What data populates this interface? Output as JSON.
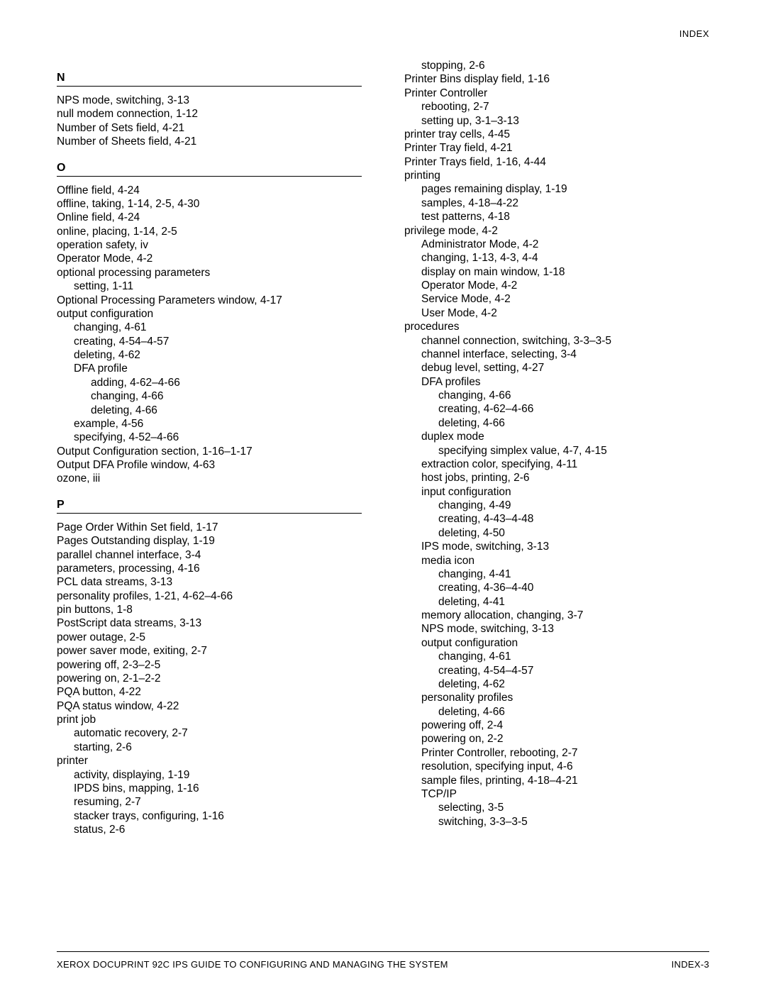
{
  "header": {
    "label": "INDEX"
  },
  "footer": {
    "left": "XEROX DOCUPRINT 92C IPS GUIDE TO CONFIGURING AND MANAGING THE SYSTEM",
    "right": "INDEX-3"
  },
  "left_column": [
    {
      "type": "letter",
      "text": "N"
    },
    {
      "type": "entry",
      "indent": 0,
      "text": "NPS mode, switching, 3-13"
    },
    {
      "type": "entry",
      "indent": 0,
      "text": "null modem connection, 1-12"
    },
    {
      "type": "entry",
      "indent": 0,
      "text": "Number of Sets field, 4-21"
    },
    {
      "type": "entry",
      "indent": 0,
      "text": "Number of Sheets field, 4-21"
    },
    {
      "type": "letter",
      "text": "O"
    },
    {
      "type": "entry",
      "indent": 0,
      "text": "Offline field, 4-24"
    },
    {
      "type": "entry",
      "indent": 0,
      "text": "offline, taking, 1-14, 2-5, 4-30"
    },
    {
      "type": "entry",
      "indent": 0,
      "text": "Online field, 4-24"
    },
    {
      "type": "entry",
      "indent": 0,
      "text": "online, placing, 1-14, 2-5"
    },
    {
      "type": "entry",
      "indent": 0,
      "text": "operation safety, iv"
    },
    {
      "type": "entry",
      "indent": 0,
      "text": "Operator Mode, 4-2"
    },
    {
      "type": "entry",
      "indent": 0,
      "text": "optional processing parameters"
    },
    {
      "type": "entry",
      "indent": 1,
      "text": "setting, 1-11"
    },
    {
      "type": "entry",
      "indent": 0,
      "text": "Optional Processing Parameters window, 4-17"
    },
    {
      "type": "entry",
      "indent": 0,
      "text": "output configuration"
    },
    {
      "type": "entry",
      "indent": 1,
      "text": "changing, 4-61"
    },
    {
      "type": "entry",
      "indent": 1,
      "text": "creating, 4-54–4-57"
    },
    {
      "type": "entry",
      "indent": 1,
      "text": "deleting, 4-62"
    },
    {
      "type": "entry",
      "indent": 1,
      "text": "DFA profile"
    },
    {
      "type": "entry",
      "indent": 2,
      "text": "adding, 4-62–4-66"
    },
    {
      "type": "entry",
      "indent": 2,
      "text": "changing, 4-66"
    },
    {
      "type": "entry",
      "indent": 2,
      "text": "deleting, 4-66"
    },
    {
      "type": "entry",
      "indent": 1,
      "text": "example, 4-56"
    },
    {
      "type": "entry",
      "indent": 1,
      "text": "specifying, 4-52–4-66"
    },
    {
      "type": "entry",
      "indent": 0,
      "text": "Output Configuration section, 1-16–1-17"
    },
    {
      "type": "entry",
      "indent": 0,
      "text": "Output DFA Profile window, 4-63"
    },
    {
      "type": "entry",
      "indent": 0,
      "text": "ozone, iii"
    },
    {
      "type": "letter",
      "text": "P"
    },
    {
      "type": "entry",
      "indent": 0,
      "text": "Page Order Within Set field, 1-17"
    },
    {
      "type": "entry",
      "indent": 0,
      "text": "Pages Outstanding display, 1-19"
    },
    {
      "type": "entry",
      "indent": 0,
      "text": "parallel channel interface, 3-4"
    },
    {
      "type": "entry",
      "indent": 0,
      "text": "parameters, processing, 4-16"
    },
    {
      "type": "entry",
      "indent": 0,
      "text": "PCL data streams, 3-13"
    },
    {
      "type": "entry",
      "indent": 0,
      "text": "personality profiles, 1-21, 4-62–4-66"
    },
    {
      "type": "entry",
      "indent": 0,
      "text": "pin buttons, 1-8"
    },
    {
      "type": "entry",
      "indent": 0,
      "text": "PostScript data streams, 3-13"
    },
    {
      "type": "entry",
      "indent": 0,
      "text": "power outage, 2-5"
    },
    {
      "type": "entry",
      "indent": 0,
      "text": "power saver mode, exiting, 2-7"
    },
    {
      "type": "entry",
      "indent": 0,
      "text": "powering off, 2-3–2-5"
    },
    {
      "type": "entry",
      "indent": 0,
      "text": "powering on, 2-1–2-2"
    },
    {
      "type": "entry",
      "indent": 0,
      "text": "PQA button, 4-22"
    },
    {
      "type": "entry",
      "indent": 0,
      "text": "PQA status window, 4-22"
    },
    {
      "type": "entry",
      "indent": 0,
      "text": "print job"
    },
    {
      "type": "entry",
      "indent": 1,
      "text": "automatic recovery, 2-7"
    },
    {
      "type": "entry",
      "indent": 1,
      "text": "starting, 2-6"
    },
    {
      "type": "entry",
      "indent": 0,
      "text": "printer"
    },
    {
      "type": "entry",
      "indent": 1,
      "text": "activity, displaying, 1-19"
    },
    {
      "type": "entry",
      "indent": 1,
      "text": "IPDS bins, mapping, 1-16"
    },
    {
      "type": "entry",
      "indent": 1,
      "text": "resuming, 2-7"
    },
    {
      "type": "entry",
      "indent": 1,
      "text": "stacker trays, configuring, 1-16"
    },
    {
      "type": "entry",
      "indent": 1,
      "text": "status, 2-6"
    }
  ],
  "right_column": [
    {
      "type": "entry",
      "indent": 1,
      "text": "stopping, 2-6"
    },
    {
      "type": "entry",
      "indent": 0,
      "text": "Printer Bins display field, 1-16"
    },
    {
      "type": "entry",
      "indent": 0,
      "text": "Printer Controller"
    },
    {
      "type": "entry",
      "indent": 1,
      "text": "rebooting, 2-7"
    },
    {
      "type": "entry",
      "indent": 1,
      "text": "setting up, 3-1–3-13"
    },
    {
      "type": "entry",
      "indent": 0,
      "text": "printer tray cells, 4-45"
    },
    {
      "type": "entry",
      "indent": 0,
      "text": "Printer Tray field, 4-21"
    },
    {
      "type": "entry",
      "indent": 0,
      "text": "Printer Trays field, 1-16, 4-44"
    },
    {
      "type": "entry",
      "indent": 0,
      "text": "printing"
    },
    {
      "type": "entry",
      "indent": 1,
      "text": "pages remaining display, 1-19"
    },
    {
      "type": "entry",
      "indent": 1,
      "text": "samples, 4-18–4-22"
    },
    {
      "type": "entry",
      "indent": 1,
      "text": "test patterns, 4-18"
    },
    {
      "type": "entry",
      "indent": 0,
      "text": "privilege mode, 4-2"
    },
    {
      "type": "entry",
      "indent": 1,
      "text": "Administrator Mode, 4-2"
    },
    {
      "type": "entry",
      "indent": 1,
      "text": "changing, 1-13, 4-3, 4-4"
    },
    {
      "type": "entry",
      "indent": 1,
      "text": "display on main window, 1-18"
    },
    {
      "type": "entry",
      "indent": 1,
      "text": "Operator Mode, 4-2"
    },
    {
      "type": "entry",
      "indent": 1,
      "text": "Service Mode, 4-2"
    },
    {
      "type": "entry",
      "indent": 1,
      "text": "User Mode, 4-2"
    },
    {
      "type": "entry",
      "indent": 0,
      "text": "procedures"
    },
    {
      "type": "entry",
      "indent": 1,
      "text": "channel connection, switching, 3-3–3-5"
    },
    {
      "type": "entry",
      "indent": 1,
      "text": "channel interface, selecting, 3-4"
    },
    {
      "type": "entry",
      "indent": 1,
      "text": "debug level, setting, 4-27"
    },
    {
      "type": "entry",
      "indent": 1,
      "text": "DFA profiles"
    },
    {
      "type": "entry",
      "indent": 2,
      "text": "changing, 4-66"
    },
    {
      "type": "entry",
      "indent": 2,
      "text": "creating, 4-62–4-66"
    },
    {
      "type": "entry",
      "indent": 2,
      "text": "deleting, 4-66"
    },
    {
      "type": "entry",
      "indent": 1,
      "text": "duplex mode"
    },
    {
      "type": "entry",
      "indent": 2,
      "text": "specifying simplex value, 4-7, 4-15"
    },
    {
      "type": "entry",
      "indent": 1,
      "text": "extraction color, specifying, 4-11"
    },
    {
      "type": "entry",
      "indent": 1,
      "text": "host jobs, printing, 2-6"
    },
    {
      "type": "entry",
      "indent": 1,
      "text": "input configuration"
    },
    {
      "type": "entry",
      "indent": 2,
      "text": "changing, 4-49"
    },
    {
      "type": "entry",
      "indent": 2,
      "text": "creating, 4-43–4-48"
    },
    {
      "type": "entry",
      "indent": 2,
      "text": "deleting, 4-50"
    },
    {
      "type": "entry",
      "indent": 1,
      "text": "IPS mode, switching, 3-13"
    },
    {
      "type": "entry",
      "indent": 1,
      "text": "media icon"
    },
    {
      "type": "entry",
      "indent": 2,
      "text": "changing, 4-41"
    },
    {
      "type": "entry",
      "indent": 2,
      "text": "creating, 4-36–4-40"
    },
    {
      "type": "entry",
      "indent": 2,
      "text": "deleting, 4-41"
    },
    {
      "type": "entry",
      "indent": 1,
      "text": "memory allocation, changing, 3-7"
    },
    {
      "type": "entry",
      "indent": 1,
      "text": "NPS mode, switching, 3-13"
    },
    {
      "type": "entry",
      "indent": 1,
      "text": "output configuration"
    },
    {
      "type": "entry",
      "indent": 2,
      "text": "changing, 4-61"
    },
    {
      "type": "entry",
      "indent": 2,
      "text": "creating, 4-54–4-57"
    },
    {
      "type": "entry",
      "indent": 2,
      "text": "deleting, 4-62"
    },
    {
      "type": "entry",
      "indent": 1,
      "text": "personality profiles"
    },
    {
      "type": "entry",
      "indent": 2,
      "text": "deleting, 4-66"
    },
    {
      "type": "entry",
      "indent": 1,
      "text": "powering off, 2-4"
    },
    {
      "type": "entry",
      "indent": 1,
      "text": "powering on, 2-2"
    },
    {
      "type": "entry",
      "indent": 1,
      "text": "Printer Controller, rebooting, 2-7"
    },
    {
      "type": "entry",
      "indent": 1,
      "text": "resolution, specifying input, 4-6"
    },
    {
      "type": "entry",
      "indent": 1,
      "text": "sample files, printing, 4-18–4-21"
    },
    {
      "type": "entry",
      "indent": 1,
      "text": "TCP/IP"
    },
    {
      "type": "entry",
      "indent": 2,
      "text": "selecting, 3-5"
    },
    {
      "type": "entry",
      "indent": 2,
      "text": "switching, 3-3–3-5"
    }
  ]
}
